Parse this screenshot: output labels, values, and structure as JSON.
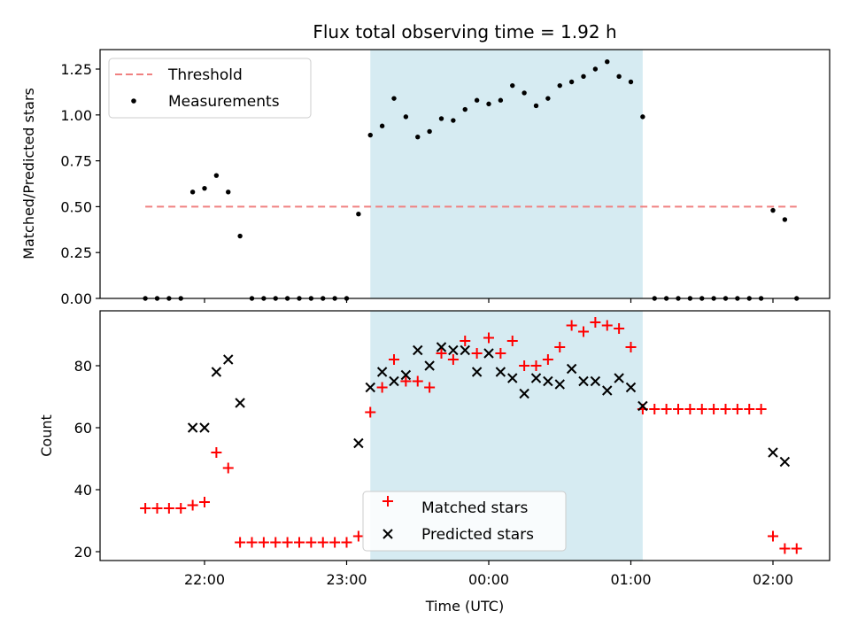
{
  "chart_data": [
    {
      "type": "scatter",
      "title": "Flux total observing time = 1.92 h",
      "xlabel": "",
      "ylabel": "Matched/Predicted stars",
      "ylim": [
        0,
        1.35
      ],
      "yticks": [
        "0.00",
        "0.25",
        "0.50",
        "0.75",
        "1.00",
        "1.25"
      ],
      "ytick_values": [
        0,
        0.25,
        0.5,
        0.75,
        1.0,
        1.25
      ],
      "xlim": [
        "21:15",
        "02:25"
      ],
      "grid": false,
      "legend_position": "upper-left",
      "shaded_interval": {
        "start": "23:10",
        "end": "01:05",
        "color": "#add8e6"
      },
      "series": [
        {
          "name": "Threshold",
          "kind": "dashed-line",
          "color": "#f08080",
          "x": [
            "21:35",
            "02:10"
          ],
          "y": [
            0.5,
            0.5
          ]
        },
        {
          "name": "Measurements",
          "kind": "points",
          "color": "#000000",
          "x": [
            "21:35",
            "21:40",
            "21:45",
            "21:50",
            "21:55",
            "22:00",
            "22:05",
            "22:10",
            "22:15",
            "22:20",
            "22:25",
            "22:30",
            "22:35",
            "22:40",
            "22:45",
            "22:50",
            "22:55",
            "23:00",
            "23:05",
            "23:10",
            "23:15",
            "23:20",
            "23:25",
            "23:30",
            "23:35",
            "23:40",
            "23:45",
            "23:50",
            "23:55",
            "00:00",
            "00:05",
            "00:10",
            "00:15",
            "00:20",
            "00:25",
            "00:30",
            "00:35",
            "00:40",
            "00:45",
            "00:50",
            "00:55",
            "01:00",
            "01:05",
            "01:10",
            "01:15",
            "01:20",
            "01:25",
            "01:30",
            "01:35",
            "01:40",
            "01:45",
            "01:50",
            "01:55",
            "02:00",
            "02:05",
            "02:10",
            "02:15"
          ],
          "y": [
            0,
            0,
            0,
            0,
            0.58,
            0.6,
            0.67,
            0.58,
            0.34,
            0,
            0,
            0,
            0,
            0,
            0,
            0,
            0,
            0,
            0.46,
            0.89,
            0.94,
            1.09,
            0.99,
            0.88,
            0.91,
            0.98,
            0.97,
            1.03,
            1.08,
            1.06,
            1.08,
            1.16,
            1.12,
            1.05,
            1.09,
            1.16,
            1.18,
            1.21,
            1.25,
            1.29,
            1.21,
            1.18,
            0.99,
            0,
            0,
            0,
            0,
            0,
            0,
            0,
            0,
            0,
            0,
            0.48,
            0.43,
            0,
            null
          ]
        }
      ]
    },
    {
      "type": "scatter",
      "title": "",
      "xlabel": "Time (UTC)",
      "ylabel": "Count",
      "ylim": [
        17,
        97
      ],
      "yticks": [
        "20",
        "40",
        "60",
        "80"
      ],
      "ytick_values": [
        20,
        40,
        60,
        80
      ],
      "xticks": [
        "22:00",
        "23:00",
        "00:00",
        "01:00",
        "02:00"
      ],
      "xtick_values": [
        "22:00",
        "23:00",
        "00:00",
        "01:00",
        "02:00"
      ],
      "xlim": [
        "21:15",
        "02:25"
      ],
      "grid": false,
      "legend_position": "lower-center",
      "shaded_interval": {
        "start": "23:10",
        "end": "01:05",
        "color": "#add8e6"
      },
      "series": [
        {
          "name": "Matched stars",
          "marker": "plus",
          "color": "#ff0000",
          "x": [
            "21:35",
            "21:40",
            "21:45",
            "21:50",
            "21:55",
            "22:00",
            "22:05",
            "22:10",
            "22:15",
            "22:20",
            "22:25",
            "22:30",
            "22:35",
            "22:40",
            "22:45",
            "22:50",
            "22:55",
            "23:00",
            "23:05",
            "23:10",
            "23:15",
            "23:20",
            "23:25",
            "23:30",
            "23:35",
            "23:40",
            "23:45",
            "23:50",
            "23:55",
            "00:00",
            "00:05",
            "00:10",
            "00:15",
            "00:20",
            "00:25",
            "00:30",
            "00:35",
            "00:40",
            "00:45",
            "00:50",
            "00:55",
            "01:00",
            "01:05",
            "01:10",
            "01:15",
            "01:20",
            "01:25",
            "01:30",
            "01:35",
            "01:40",
            "01:45",
            "01:50",
            "01:55",
            "02:00",
            "02:05",
            "02:10"
          ],
          "y": [
            34,
            34,
            34,
            34,
            35,
            36,
            52,
            47,
            23,
            23,
            23,
            23,
            23,
            23,
            23,
            23,
            23,
            23,
            25,
            65,
            73,
            82,
            75,
            75,
            73,
            84,
            82,
            88,
            84,
            89,
            84,
            88,
            80,
            80,
            82,
            86,
            93,
            91,
            94,
            93,
            92,
            86,
            66,
            66,
            66,
            66,
            66,
            66,
            66,
            66,
            66,
            66,
            66,
            25,
            21,
            21
          ]
        },
        {
          "name": "Predicted stars",
          "marker": "x",
          "color": "#000000",
          "x": [
            "21:55",
            "22:00",
            "22:05",
            "22:10",
            "22:15",
            "23:05",
            "23:10",
            "23:15",
            "23:20",
            "23:25",
            "23:30",
            "23:35",
            "23:40",
            "23:45",
            "23:50",
            "23:55",
            "00:00",
            "00:05",
            "00:10",
            "00:15",
            "00:20",
            "00:25",
            "00:30",
            "00:35",
            "00:40",
            "00:45",
            "00:50",
            "00:55",
            "01:00",
            "01:05",
            "02:00",
            "02:05"
          ],
          "y": [
            60,
            60,
            78,
            82,
            68,
            55,
            73,
            78,
            75,
            77,
            85,
            80,
            86,
            85,
            85,
            78,
            84,
            78,
            76,
            71,
            76,
            75,
            74,
            79,
            75,
            75,
            72,
            76,
            73,
            67,
            52,
            49
          ]
        }
      ]
    }
  ]
}
